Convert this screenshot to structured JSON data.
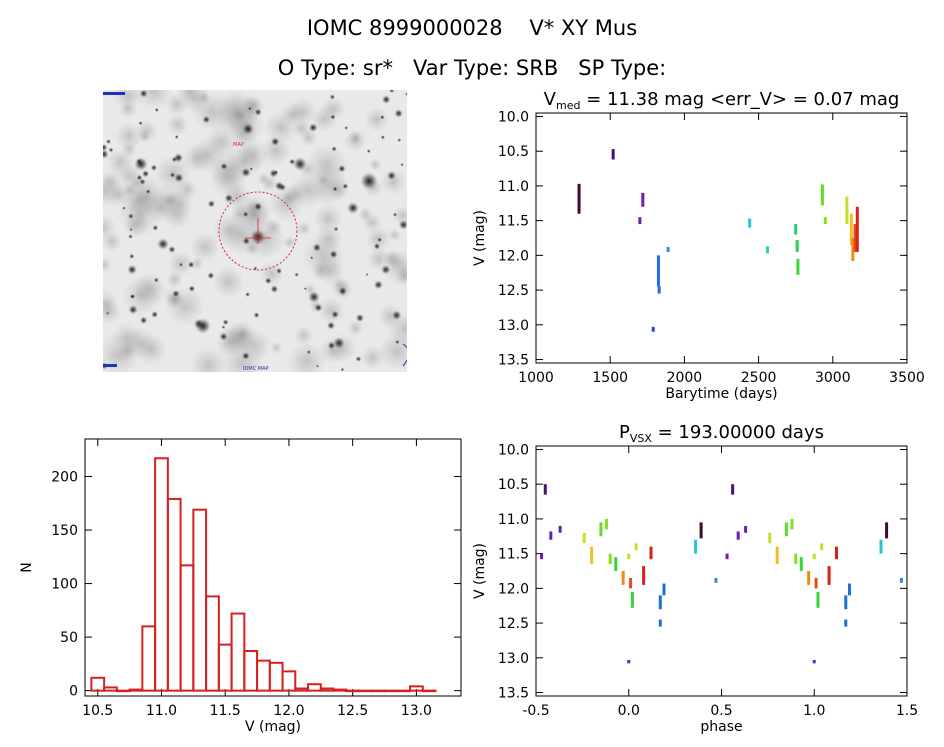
{
  "header": {
    "title": "IOMC 8999000028    V* XY Mus",
    "subtitle": "O Type: sr*   Var Type: SRB   SP Type:"
  },
  "finder_chart": {
    "label_top": "MAP",
    "label_bottom": "IOMC MAP"
  },
  "chart_data": [
    {
      "id": "lightcurve",
      "type": "scatter",
      "title_prefix": "V",
      "title_sub": "med",
      "title_rest": " = 11.38 mag <err_V> = 0.07 mag",
      "xlabel": "Barytime (days)",
      "ylabel": "V (mag)",
      "xlim": [
        1000,
        3500
      ],
      "ylim": [
        13.55,
        9.95
      ],
      "xticks": [
        1000,
        1500,
        2000,
        2500,
        3000,
        3500
      ],
      "yticks": [
        10.0,
        10.5,
        11.0,
        11.5,
        12.0,
        12.5,
        13.0,
        13.5
      ],
      "clusters": [
        {
          "x": 1290,
          "ymin": 10.97,
          "ymax": 11.4,
          "color": "#3b0a2e"
        },
        {
          "x": 1520,
          "ymin": 10.47,
          "ymax": 10.62,
          "color": "#4b1070"
        },
        {
          "x": 1720,
          "ymin": 11.1,
          "ymax": 11.3,
          "color": "#6a1fb0"
        },
        {
          "x": 1700,
          "ymin": 11.45,
          "ymax": 11.55,
          "color": "#6a1fb0"
        },
        {
          "x": 1790,
          "ymin": 13.03,
          "ymax": 13.1,
          "color": "#2a45c9"
        },
        {
          "x": 1825,
          "ymin": 12.0,
          "ymax": 12.45,
          "color": "#1f6fd6"
        },
        {
          "x": 1830,
          "ymin": 12.45,
          "ymax": 12.55,
          "color": "#1f6fd6"
        },
        {
          "x": 1890,
          "ymin": 11.88,
          "ymax": 11.95,
          "color": "#2f8ae0"
        },
        {
          "x": 2440,
          "ymin": 11.47,
          "ymax": 11.6,
          "color": "#25c6d8"
        },
        {
          "x": 2560,
          "ymin": 11.87,
          "ymax": 11.97,
          "color": "#22d4b0"
        },
        {
          "x": 2750,
          "ymin": 11.55,
          "ymax": 11.7,
          "color": "#22cc7a"
        },
        {
          "x": 2760,
          "ymin": 11.78,
          "ymax": 11.95,
          "color": "#2ed04a"
        },
        {
          "x": 2765,
          "ymin": 12.05,
          "ymax": 12.28,
          "color": "#3ad43a"
        },
        {
          "x": 2930,
          "ymin": 10.98,
          "ymax": 11.28,
          "color": "#5ee022"
        },
        {
          "x": 2950,
          "ymin": 11.45,
          "ymax": 11.55,
          "color": "#7fe21e"
        },
        {
          "x": 3095,
          "ymin": 11.15,
          "ymax": 11.55,
          "color": "#c6e02a"
        },
        {
          "x": 3125,
          "ymin": 11.4,
          "ymax": 11.85,
          "color": "#f0c020"
        },
        {
          "x": 3135,
          "ymin": 11.75,
          "ymax": 12.08,
          "color": "#f08a18"
        },
        {
          "x": 3150,
          "ymin": 11.55,
          "ymax": 11.95,
          "color": "#e84a18"
        },
        {
          "x": 3165,
          "ymin": 11.3,
          "ymax": 11.95,
          "color": "#d81f18"
        }
      ]
    },
    {
      "id": "histogram",
      "type": "bar",
      "xlabel": "V (mag)",
      "ylabel": "N",
      "xlim": [
        10.4,
        13.35
      ],
      "ylim": [
        -5,
        235
      ],
      "xticks": [
        10.5,
        11.0,
        11.5,
        12.0,
        12.5,
        13.0
      ],
      "yticks": [
        0,
        50,
        100,
        150,
        200
      ],
      "bin_width": 0.1,
      "bin_starts": [
        10.45,
        10.55,
        10.65,
        10.75,
        10.85,
        10.95,
        11.05,
        11.15,
        11.25,
        11.35,
        11.45,
        11.55,
        11.65,
        11.75,
        11.85,
        11.95,
        12.05,
        12.15,
        12.25,
        12.35,
        12.45,
        12.55,
        12.65,
        12.75,
        12.85,
        12.95,
        13.05
      ],
      "values": [
        12,
        3,
        0,
        1,
        60,
        217,
        179,
        117,
        169,
        88,
        43,
        72,
        37,
        28,
        26,
        18,
        2,
        6,
        2,
        1,
        0,
        0,
        0,
        0,
        0,
        4,
        0
      ],
      "color": "#d42020"
    },
    {
      "id": "phased",
      "type": "scatter",
      "title_prefix": "P",
      "title_sub": "VSX",
      "title_rest": " = 193.00000 days",
      "xlabel": "phase",
      "ylabel": "V (mag)",
      "xlim": [
        -0.5,
        1.5
      ],
      "ylim": [
        13.55,
        9.95
      ],
      "xticks": [
        -0.5,
        0.0,
        0.5,
        1.0,
        1.5
      ],
      "yticks": [
        10.0,
        10.5,
        11.0,
        11.5,
        12.0,
        12.5,
        13.0,
        13.5
      ],
      "clusters": [
        {
          "x": -0.45,
          "ymin": 10.5,
          "ymax": 10.65,
          "color": "#4b1070"
        },
        {
          "x": -0.42,
          "ymin": 11.18,
          "ymax": 11.3,
          "color": "#6a1fb0"
        },
        {
          "x": -0.37,
          "ymin": 11.1,
          "ymax": 11.2,
          "color": "#6a1fb0"
        },
        {
          "x": -0.47,
          "ymin": 11.5,
          "ymax": 11.58,
          "color": "#6a1fb0"
        },
        {
          "x": -0.24,
          "ymin": 11.2,
          "ymax": 11.35,
          "color": "#c6e02a"
        },
        {
          "x": -0.2,
          "ymin": 11.4,
          "ymax": 11.65,
          "color": "#f0c020"
        },
        {
          "x": -0.15,
          "ymin": 11.05,
          "ymax": 11.25,
          "color": "#5ee022"
        },
        {
          "x": -0.12,
          "ymin": 11.0,
          "ymax": 11.15,
          "color": "#7fe21e"
        },
        {
          "x": -0.1,
          "ymin": 11.5,
          "ymax": 11.65,
          "color": "#7fe21e"
        },
        {
          "x": -0.07,
          "ymin": 11.55,
          "ymax": 11.75,
          "color": "#3ad43a"
        },
        {
          "x": -0.03,
          "ymin": 11.75,
          "ymax": 11.95,
          "color": "#f08a18"
        },
        {
          "x": 0.0,
          "ymin": 11.5,
          "ymax": 11.58,
          "color": "#c6e02a"
        },
        {
          "x": 0.01,
          "ymin": 11.85,
          "ymax": 12.0,
          "color": "#e84a18"
        },
        {
          "x": 0.02,
          "ymin": 12.05,
          "ymax": 12.28,
          "color": "#3ad43a"
        },
        {
          "x": 0.04,
          "ymin": 11.35,
          "ymax": 11.45,
          "color": "#c6e02a"
        },
        {
          "x": 0.08,
          "ymin": 11.68,
          "ymax": 11.95,
          "color": "#d81f18"
        },
        {
          "x": 0.12,
          "ymin": 11.4,
          "ymax": 11.58,
          "color": "#d81f18"
        },
        {
          "x": 0.17,
          "ymin": 12.1,
          "ymax": 12.3,
          "color": "#1f6fd6"
        },
        {
          "x": 0.17,
          "ymin": 12.45,
          "ymax": 12.55,
          "color": "#1f6fd6"
        },
        {
          "x": 0.19,
          "ymin": 11.93,
          "ymax": 12.1,
          "color": "#1f6fd6"
        },
        {
          "x": 0.0,
          "ymin": 13.03,
          "ymax": 13.08,
          "color": "#2a45c9"
        },
        {
          "x": 0.36,
          "ymin": 11.3,
          "ymax": 11.5,
          "color": "#25c6d8"
        },
        {
          "x": 0.39,
          "ymin": 11.05,
          "ymax": 11.28,
          "color": "#3b0a2e"
        },
        {
          "x": 0.47,
          "ymin": 11.85,
          "ymax": 11.92,
          "color": "#2f8ae0"
        },
        {
          "x": 0.56,
          "ymin": 10.5,
          "ymax": 10.65,
          "color": "#4b1070"
        },
        {
          "x": 0.59,
          "ymin": 11.18,
          "ymax": 11.3,
          "color": "#6a1fb0"
        },
        {
          "x": 0.63,
          "ymin": 11.1,
          "ymax": 11.2,
          "color": "#6a1fb0"
        },
        {
          "x": 0.53,
          "ymin": 11.5,
          "ymax": 11.58,
          "color": "#6a1fb0"
        },
        {
          "x": 0.76,
          "ymin": 11.2,
          "ymax": 11.35,
          "color": "#c6e02a"
        },
        {
          "x": 0.8,
          "ymin": 11.4,
          "ymax": 11.65,
          "color": "#f0c020"
        },
        {
          "x": 0.85,
          "ymin": 11.05,
          "ymax": 11.25,
          "color": "#5ee022"
        },
        {
          "x": 0.88,
          "ymin": 11.0,
          "ymax": 11.15,
          "color": "#7fe21e"
        },
        {
          "x": 0.9,
          "ymin": 11.5,
          "ymax": 11.65,
          "color": "#7fe21e"
        },
        {
          "x": 0.93,
          "ymin": 11.55,
          "ymax": 11.75,
          "color": "#3ad43a"
        },
        {
          "x": 0.97,
          "ymin": 11.75,
          "ymax": 11.95,
          "color": "#f08a18"
        },
        {
          "x": 1.0,
          "ymin": 11.5,
          "ymax": 11.58,
          "color": "#c6e02a"
        },
        {
          "x": 1.01,
          "ymin": 11.85,
          "ymax": 12.0,
          "color": "#e84a18"
        },
        {
          "x": 1.02,
          "ymin": 12.05,
          "ymax": 12.28,
          "color": "#3ad43a"
        },
        {
          "x": 1.04,
          "ymin": 11.35,
          "ymax": 11.45,
          "color": "#c6e02a"
        },
        {
          "x": 1.08,
          "ymin": 11.68,
          "ymax": 11.95,
          "color": "#d81f18"
        },
        {
          "x": 1.12,
          "ymin": 11.4,
          "ymax": 11.58,
          "color": "#d81f18"
        },
        {
          "x": 1.17,
          "ymin": 12.1,
          "ymax": 12.3,
          "color": "#1f6fd6"
        },
        {
          "x": 1.17,
          "ymin": 12.45,
          "ymax": 12.55,
          "color": "#1f6fd6"
        },
        {
          "x": 1.19,
          "ymin": 11.93,
          "ymax": 12.1,
          "color": "#1f6fd6"
        },
        {
          "x": 1.0,
          "ymin": 13.03,
          "ymax": 13.08,
          "color": "#2a45c9"
        },
        {
          "x": 1.36,
          "ymin": 11.3,
          "ymax": 11.5,
          "color": "#25c6d8"
        },
        {
          "x": 1.39,
          "ymin": 11.05,
          "ymax": 11.28,
          "color": "#3b0a2e"
        },
        {
          "x": 1.47,
          "ymin": 11.85,
          "ymax": 11.92,
          "color": "#2f8ae0"
        }
      ]
    }
  ]
}
